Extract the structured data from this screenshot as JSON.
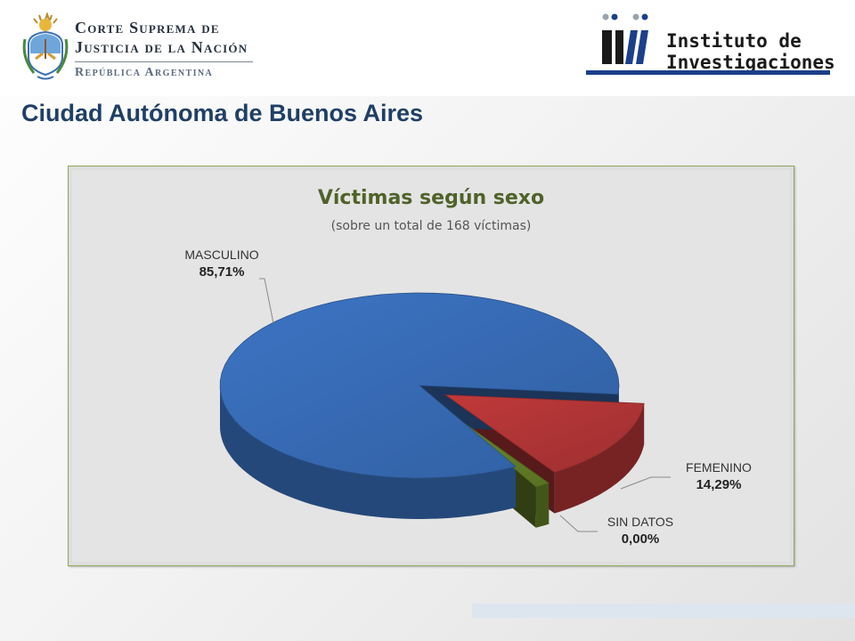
{
  "header": {
    "csjn": {
      "line1": "Corte Suprema de",
      "line2": "Justicia de la Nación",
      "line3": "República Argentina"
    },
    "institute": {
      "line1": "Instituto de",
      "line2": "Investigaciones"
    }
  },
  "page_title": "Ciudad Autónoma de Buenos Aires",
  "colors": {
    "title": "#1f3f66",
    "chart_title": "#4f6228",
    "masculino": "#3c74c4",
    "femenino": "#c0393a",
    "sin_datos": "#6c8a2a",
    "frame_border": "#8cab5a"
  },
  "chart_data": {
    "type": "pie",
    "title": "Víctimas según sexo",
    "subtitle": "(sobre un total de 168 víctimas)",
    "categories": [
      "MASCULINO",
      "FEMENINO",
      "SIN DATOS"
    ],
    "values": [
      85.71,
      14.29,
      0.0
    ],
    "value_labels": [
      "85,71%",
      "14,29%",
      "0,00%"
    ],
    "legend": "none",
    "style": "3d-exploded"
  }
}
